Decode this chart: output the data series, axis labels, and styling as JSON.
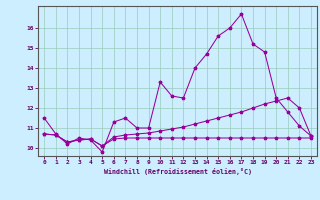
{
  "xlabel": "Windchill (Refroidissement éolien,°C)",
  "x": [
    0,
    1,
    2,
    3,
    4,
    5,
    6,
    7,
    8,
    9,
    10,
    11,
    12,
    13,
    14,
    15,
    16,
    17,
    18,
    19,
    20,
    21,
    22,
    23
  ],
  "line1": [
    11.5,
    10.7,
    10.2,
    10.5,
    10.4,
    9.8,
    11.3,
    11.5,
    11.0,
    11.0,
    13.3,
    12.6,
    12.5,
    14.0,
    14.7,
    15.6,
    16.0,
    16.7,
    15.2,
    14.8,
    12.5,
    11.8,
    11.1,
    10.6
  ],
  "line2": [
    10.7,
    10.65,
    10.3,
    10.4,
    10.45,
    10.1,
    10.55,
    10.65,
    10.7,
    10.75,
    10.85,
    10.95,
    11.05,
    11.2,
    11.35,
    11.5,
    11.65,
    11.8,
    12.0,
    12.2,
    12.35,
    12.5,
    12.0,
    10.6
  ],
  "line3": [
    10.7,
    10.65,
    10.3,
    10.4,
    10.45,
    10.1,
    10.45,
    10.5,
    10.5,
    10.5,
    10.5,
    10.5,
    10.5,
    10.5,
    10.5,
    10.5,
    10.5,
    10.5,
    10.5,
    10.5,
    10.5,
    10.5,
    10.5,
    10.5
  ],
  "line_color": "#990099",
  "bg_color": "#cceeff",
  "grid_color": "#99ccbb",
  "axis_color": "#660066",
  "spine_color": "#555555",
  "ylim": [
    9.6,
    17.1
  ],
  "yticks": [
    10,
    11,
    12,
    13,
    14,
    15,
    16
  ]
}
